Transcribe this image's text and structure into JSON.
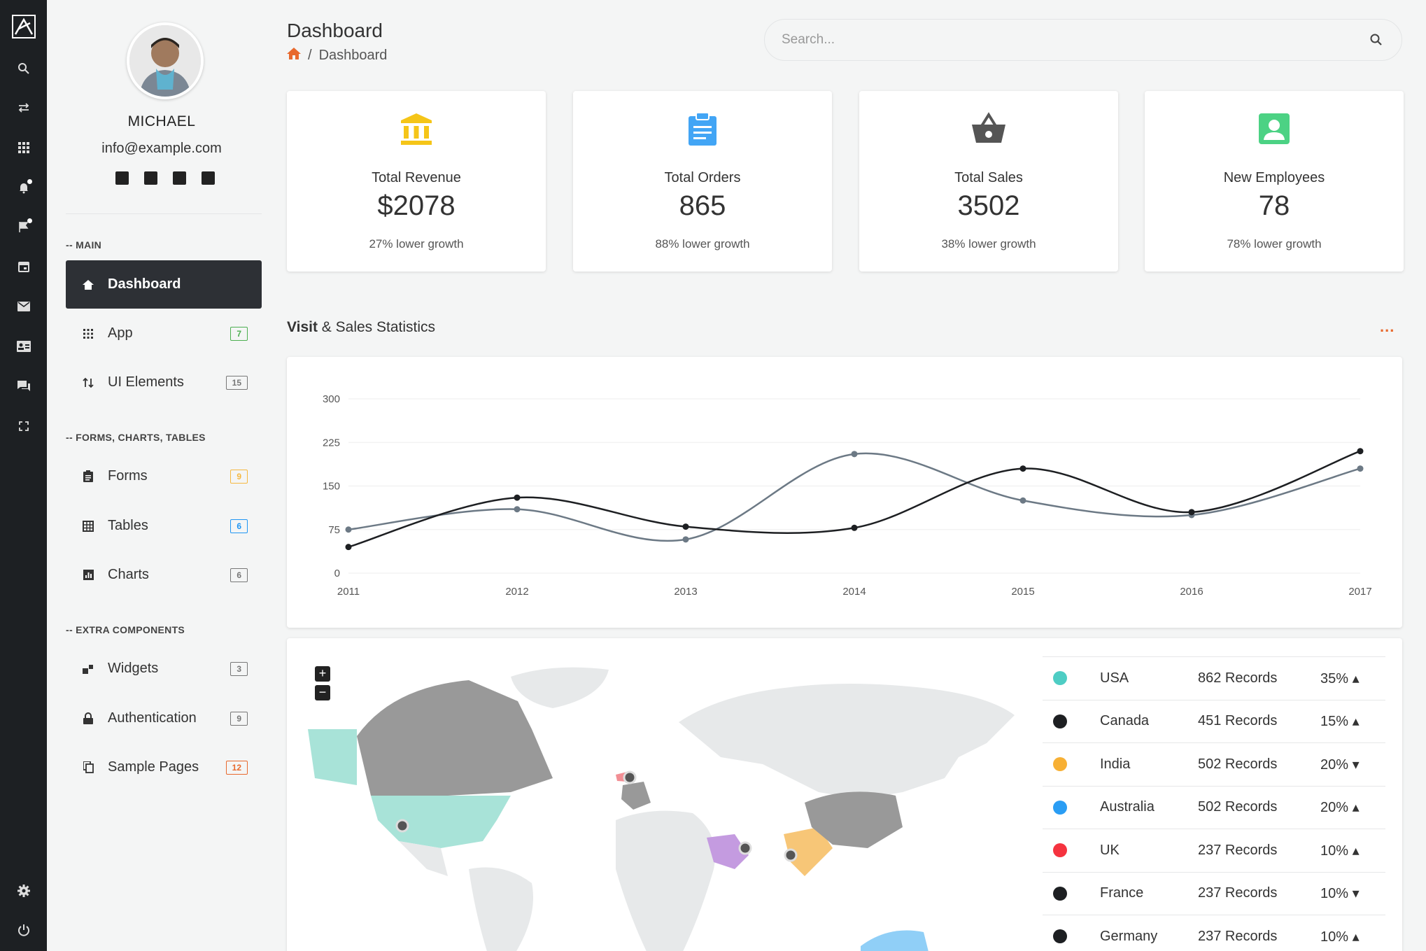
{
  "user": {
    "name": "MICHAEL",
    "email": "info@example.com"
  },
  "sidebar": {
    "sections": [
      {
        "title": "-- MAIN"
      },
      {
        "title": "-- FORMS, CHARTS, TABLES"
      },
      {
        "title": "-- EXTRA COMPONENTS"
      }
    ],
    "items": [
      {
        "label": "Dashboard",
        "badge": ""
      },
      {
        "label": "App",
        "badge": "7",
        "badge_color": "#4caf50"
      },
      {
        "label": "UI Elements",
        "badge": "15",
        "badge_color": "#777777"
      },
      {
        "label": "Forms",
        "badge": "9",
        "badge_color": "#f5b840"
      },
      {
        "label": "Tables",
        "badge": "6",
        "badge_color": "#2196f3"
      },
      {
        "label": "Charts",
        "badge": "6",
        "badge_color": "#777777"
      },
      {
        "label": "Widgets",
        "badge": "3",
        "badge_color": "#777777"
      },
      {
        "label": "Authentication",
        "badge": "9",
        "badge_color": "#777777"
      },
      {
        "label": "Sample Pages",
        "badge": "12",
        "badge_color": "#e8692d"
      }
    ]
  },
  "header": {
    "title": "Dashboard",
    "breadcrumb": "Dashboard",
    "search_placeholder": "Search..."
  },
  "stats": [
    {
      "label": "Total Revenue",
      "value": "$2078",
      "sub": "27% lower growth",
      "icon": "bank-icon",
      "color": "#f5c518"
    },
    {
      "label": "Total Orders",
      "value": "865",
      "sub": "88% lower growth",
      "icon": "clipboard-icon",
      "color": "#42a5f5"
    },
    {
      "label": "Total Sales",
      "value": "3502",
      "sub": "38% lower growth",
      "icon": "basket-icon",
      "color": "#555555"
    },
    {
      "label": "New Employees",
      "value": "78",
      "sub": "78% lower growth",
      "icon": "person-badge-icon",
      "color": "#4cd284"
    }
  ],
  "section": {
    "title_bold": "Visit",
    "title_rest": " & Sales Statistics",
    "more": "..."
  },
  "chart_data": {
    "type": "line",
    "categories": [
      "2011",
      "2012",
      "2013",
      "2014",
      "2015",
      "2016",
      "2017"
    ],
    "ylim": [
      0,
      300
    ],
    "yticks": [
      "0",
      "75",
      "150",
      "225",
      "300"
    ],
    "series": [
      {
        "values": [
          45,
          130,
          80,
          78,
          180,
          105,
          210
        ],
        "color": "#1d1f22"
      },
      {
        "values": [
          75,
          110,
          58,
          205,
          125,
          100,
          180
        ],
        "color": "#6c7985"
      }
    ]
  },
  "map": {
    "zoom_in": "+",
    "zoom_out": "−",
    "rows": [
      {
        "country": "USA",
        "records": "862 Records",
        "pct": "35%",
        "dir": "up",
        "color": "#4ecdc4"
      },
      {
        "country": "Canada",
        "records": "451 Records",
        "pct": "15%",
        "dir": "up",
        "color": "#1d1f22"
      },
      {
        "country": "India",
        "records": "502 Records",
        "pct": "20%",
        "dir": "down",
        "color": "#f7b035"
      },
      {
        "country": "Australia",
        "records": "502 Records",
        "pct": "20%",
        "dir": "up",
        "color": "#2a9df4"
      },
      {
        "country": "UK",
        "records": "237 Records",
        "pct": "10%",
        "dir": "up",
        "color": "#f5333f"
      },
      {
        "country": "France",
        "records": "237 Records",
        "pct": "10%",
        "dir": "down",
        "color": "#1d1f22"
      },
      {
        "country": "Germany",
        "records": "237 Records",
        "pct": "10%",
        "dir": "up",
        "color": "#1d1f22"
      }
    ]
  }
}
